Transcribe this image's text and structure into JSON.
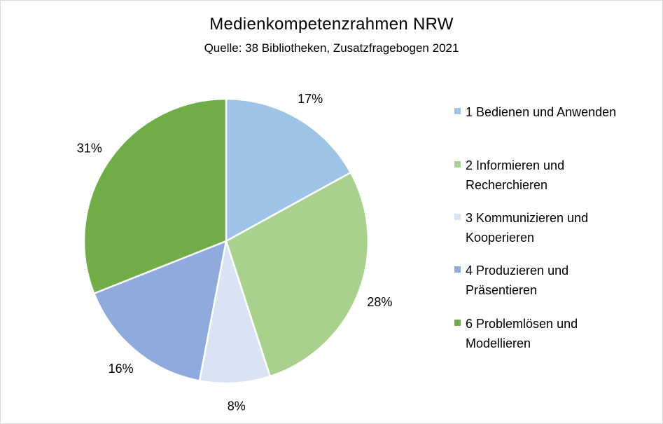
{
  "chart_data": {
    "type": "pie",
    "title": "Medienkompetenzrahmen NRW",
    "subtitle": "Quelle: 38 Bibliotheken, Zusatzfragebogen 2021",
    "legend_position": "right",
    "slices": [
      {
        "label": "1 Bedienen und Anwenden",
        "value": 17,
        "display": "17%",
        "color": "#9DC3E6"
      },
      {
        "label": "2 Informieren und\nRecherchieren",
        "value": 28,
        "display": "28%",
        "color": "#A9D18E"
      },
      {
        "label": "3 Kommunizieren und\nKooperieren",
        "value": 8,
        "display": "8%",
        "color": "#DAE3F3"
      },
      {
        "label": "4 Produzieren und\nPräsentieren",
        "value": 16,
        "display": "16%",
        "color": "#8FAADC"
      },
      {
        "label": "6 Problemlösen und\nModellieren",
        "value": 31,
        "display": "31%",
        "color": "#70AD47"
      }
    ]
  }
}
